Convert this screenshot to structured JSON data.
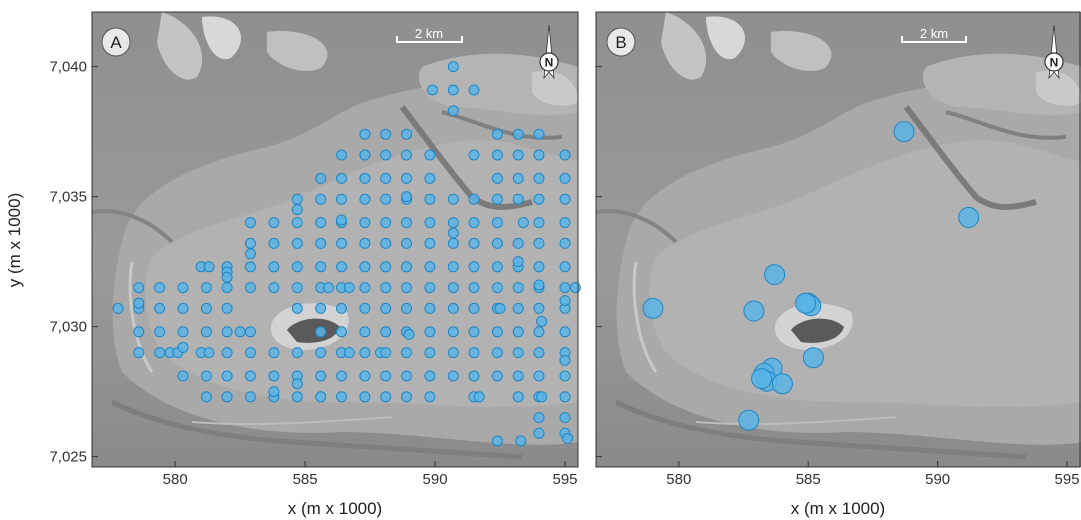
{
  "chart_data": [
    {
      "type": "scatter",
      "panel_label": "A",
      "scale_bar_label": "2 km",
      "north_label": "N",
      "xlabel": "x (m x 1000)",
      "ylabel": "y (m x 1000)",
      "xlim": [
        576.8,
        595.5
      ],
      "ylim": [
        7024.6,
        7042.1
      ],
      "xticks": [
        580,
        585,
        590,
        595
      ],
      "xtick_labels": [
        "580",
        "585",
        "590",
        "595"
      ],
      "yticks": [
        7025,
        7030,
        7035,
        7040
      ],
      "ytick_labels": [
        "7,025",
        "7,030",
        "7,035",
        "7,040"
      ],
      "marker_color": "#5ab4e6",
      "marker_edge_color": "#1f86c4",
      "marker_radius": 5,
      "points": [
        [
          590.7,
          7040.0
        ],
        [
          589.9,
          7039.1
        ],
        [
          590.7,
          7039.1
        ],
        [
          591.5,
          7039.1
        ],
        [
          590.7,
          7038.3
        ],
        [
          587.3,
          7037.4
        ],
        [
          588.1,
          7037.4
        ],
        [
          588.9,
          7037.4
        ],
        [
          592.4,
          7037.4
        ],
        [
          593.2,
          7037.4
        ],
        [
          594.0,
          7037.4
        ],
        [
          586.4,
          7036.6
        ],
        [
          587.3,
          7036.6
        ],
        [
          588.1,
          7036.6
        ],
        [
          588.9,
          7036.6
        ],
        [
          589.8,
          7036.6
        ],
        [
          591.5,
          7036.6
        ],
        [
          592.4,
          7036.6
        ],
        [
          593.2,
          7036.6
        ],
        [
          594.0,
          7036.6
        ],
        [
          595.0,
          7036.6
        ],
        [
          585.6,
          7035.7
        ],
        [
          586.4,
          7035.7
        ],
        [
          587.3,
          7035.7
        ],
        [
          588.1,
          7035.7
        ],
        [
          588.9,
          7035.7
        ],
        [
          589.8,
          7035.7
        ],
        [
          592.4,
          7035.7
        ],
        [
          593.2,
          7035.7
        ],
        [
          594.0,
          7035.7
        ],
        [
          595.0,
          7035.7
        ],
        [
          584.7,
          7034.9
        ],
        [
          585.6,
          7034.9
        ],
        [
          586.4,
          7034.9
        ],
        [
          587.3,
          7034.9
        ],
        [
          588.1,
          7034.9
        ],
        [
          588.9,
          7034.9
        ],
        [
          589.8,
          7034.9
        ],
        [
          590.7,
          7034.9
        ],
        [
          591.5,
          7034.9
        ],
        [
          592.4,
          7034.9
        ],
        [
          593.2,
          7034.9
        ],
        [
          594.0,
          7034.9
        ],
        [
          595.0,
          7034.9
        ],
        [
          584.7,
          7034.5
        ],
        [
          588.9,
          7035.0
        ],
        [
          582.9,
          7034.0
        ],
        [
          583.8,
          7034.0
        ],
        [
          584.7,
          7034.0
        ],
        [
          585.6,
          7034.0
        ],
        [
          586.4,
          7034.0
        ],
        [
          587.3,
          7034.0
        ],
        [
          588.1,
          7034.0
        ],
        [
          588.9,
          7034.0
        ],
        [
          589.8,
          7034.0
        ],
        [
          590.7,
          7034.0
        ],
        [
          591.5,
          7034.0
        ],
        [
          592.4,
          7034.0
        ],
        [
          593.4,
          7034.0
        ],
        [
          594.0,
          7034.0
        ],
        [
          595.0,
          7034.0
        ],
        [
          586.4,
          7034.1
        ],
        [
          582.9,
          7033.2
        ],
        [
          583.8,
          7033.2
        ],
        [
          584.7,
          7033.2
        ],
        [
          585.6,
          7033.2
        ],
        [
          586.4,
          7033.2
        ],
        [
          587.3,
          7033.2
        ],
        [
          588.1,
          7033.2
        ],
        [
          588.9,
          7033.2
        ],
        [
          589.8,
          7033.2
        ],
        [
          590.7,
          7033.2
        ],
        [
          591.5,
          7033.2
        ],
        [
          592.4,
          7033.2
        ],
        [
          593.2,
          7033.2
        ],
        [
          594.0,
          7033.2
        ],
        [
          595.0,
          7033.2
        ],
        [
          590.7,
          7033.6
        ],
        [
          581.0,
          7032.3
        ],
        [
          581.3,
          7032.3
        ],
        [
          582.0,
          7032.3
        ],
        [
          582.9,
          7032.3
        ],
        [
          583.8,
          7032.3
        ],
        [
          584.7,
          7032.3
        ],
        [
          585.6,
          7032.3
        ],
        [
          586.4,
          7032.3
        ],
        [
          587.3,
          7032.3
        ],
        [
          588.1,
          7032.3
        ],
        [
          588.9,
          7032.3
        ],
        [
          589.8,
          7032.3
        ],
        [
          590.7,
          7032.3
        ],
        [
          591.5,
          7032.3
        ],
        [
          592.4,
          7032.3
        ],
        [
          593.2,
          7032.3
        ],
        [
          594.0,
          7032.3
        ],
        [
          595.0,
          7032.3
        ],
        [
          582.9,
          7032.8
        ],
        [
          593.2,
          7032.5
        ],
        [
          582.0,
          7032.1
        ],
        [
          582.0,
          7031.9
        ],
        [
          578.6,
          7031.5
        ],
        [
          579.4,
          7031.5
        ],
        [
          580.3,
          7031.5
        ],
        [
          581.2,
          7031.5
        ],
        [
          582.0,
          7031.5
        ],
        [
          582.9,
          7031.5
        ],
        [
          583.8,
          7031.5
        ],
        [
          584.7,
          7031.5
        ],
        [
          585.6,
          7031.5
        ],
        [
          586.4,
          7031.5
        ],
        [
          587.3,
          7031.5
        ],
        [
          588.1,
          7031.5
        ],
        [
          588.9,
          7031.5
        ],
        [
          589.8,
          7031.5
        ],
        [
          590.7,
          7031.5
        ],
        [
          591.5,
          7031.5
        ],
        [
          592.4,
          7031.5
        ],
        [
          593.2,
          7031.5
        ],
        [
          594.0,
          7031.5
        ],
        [
          595.0,
          7031.5
        ],
        [
          595.4,
          7031.5
        ],
        [
          585.9,
          7031.5
        ],
        [
          586.7,
          7031.5
        ],
        [
          594.0,
          7031.6
        ],
        [
          577.8,
          7030.7
        ],
        [
          578.6,
          7030.7
        ],
        [
          579.4,
          7030.7
        ],
        [
          580.3,
          7030.7
        ],
        [
          581.2,
          7030.7
        ],
        [
          582.0,
          7030.7
        ],
        [
          584.7,
          7030.7
        ],
        [
          585.6,
          7030.7
        ],
        [
          586.4,
          7030.7
        ],
        [
          587.3,
          7030.7
        ],
        [
          588.1,
          7030.7
        ],
        [
          588.9,
          7030.7
        ],
        [
          589.8,
          7030.7
        ],
        [
          590.7,
          7030.7
        ],
        [
          591.5,
          7030.7
        ],
        [
          592.4,
          7030.7
        ],
        [
          593.2,
          7030.7
        ],
        [
          594.0,
          7030.7
        ],
        [
          595.0,
          7030.7
        ],
        [
          578.6,
          7030.9
        ],
        [
          592.5,
          7030.7
        ],
        [
          595.0,
          7031.0
        ],
        [
          578.6,
          7029.8
        ],
        [
          579.4,
          7029.8
        ],
        [
          580.3,
          7029.8
        ],
        [
          581.2,
          7029.8
        ],
        [
          582.0,
          7029.8
        ],
        [
          582.5,
          7029.8
        ],
        [
          582.9,
          7029.8
        ],
        [
          585.6,
          7029.8
        ],
        [
          586.4,
          7029.8
        ],
        [
          587.3,
          7029.8
        ],
        [
          588.1,
          7029.8
        ],
        [
          588.9,
          7029.8
        ],
        [
          589.8,
          7029.8
        ],
        [
          590.7,
          7029.8
        ],
        [
          591.5,
          7029.8
        ],
        [
          592.4,
          7029.8
        ],
        [
          593.2,
          7029.8
        ],
        [
          594.0,
          7029.8
        ],
        [
          595.0,
          7029.8
        ],
        [
          589.0,
          7029.7
        ],
        [
          594.1,
          7030.2
        ],
        [
          578.6,
          7029.0
        ],
        [
          579.4,
          7029.0
        ],
        [
          579.8,
          7029.0
        ],
        [
          580.1,
          7029.0
        ],
        [
          581.0,
          7029.0
        ],
        [
          581.3,
          7029.0
        ],
        [
          582.0,
          7029.0
        ],
        [
          582.9,
          7029.0
        ],
        [
          583.8,
          7029.0
        ],
        [
          584.7,
          7029.0
        ],
        [
          585.6,
          7029.0
        ],
        [
          586.4,
          7029.0
        ],
        [
          586.7,
          7029.0
        ],
        [
          587.3,
          7029.0
        ],
        [
          587.9,
          7029.0
        ],
        [
          588.1,
          7029.0
        ],
        [
          588.9,
          7029.0
        ],
        [
          589.8,
          7029.0
        ],
        [
          590.7,
          7029.0
        ],
        [
          591.5,
          7029.0
        ],
        [
          592.4,
          7029.0
        ],
        [
          593.2,
          7029.0
        ],
        [
          594.0,
          7029.0
        ],
        [
          595.0,
          7029.0
        ],
        [
          580.3,
          7029.2
        ],
        [
          595.0,
          7028.7
        ],
        [
          580.3,
          7028.1
        ],
        [
          581.2,
          7028.1
        ],
        [
          582.0,
          7028.1
        ],
        [
          582.9,
          7028.1
        ],
        [
          583.8,
          7028.1
        ],
        [
          584.7,
          7028.1
        ],
        [
          585.6,
          7028.1
        ],
        [
          586.4,
          7028.1
        ],
        [
          587.3,
          7028.1
        ],
        [
          588.1,
          7028.1
        ],
        [
          588.9,
          7028.1
        ],
        [
          589.8,
          7028.1
        ],
        [
          590.7,
          7028.1
        ],
        [
          591.5,
          7028.1
        ],
        [
          592.4,
          7028.1
        ],
        [
          593.2,
          7028.1
        ],
        [
          594.0,
          7028.1
        ],
        [
          595.0,
          7028.1
        ],
        [
          584.7,
          7027.8
        ],
        [
          581.2,
          7027.3
        ],
        [
          582.0,
          7027.3
        ],
        [
          582.9,
          7027.3
        ],
        [
          583.8,
          7027.3
        ],
        [
          584.7,
          7027.3
        ],
        [
          585.6,
          7027.3
        ],
        [
          586.4,
          7027.3
        ],
        [
          587.3,
          7027.3
        ],
        [
          588.1,
          7027.3
        ],
        [
          588.9,
          7027.3
        ],
        [
          589.8,
          7027.3
        ],
        [
          591.5,
          7027.3
        ],
        [
          591.7,
          7027.3
        ],
        [
          593.2,
          7027.3
        ],
        [
          594.0,
          7027.3
        ],
        [
          594.1,
          7027.3
        ],
        [
          595.0,
          7027.3
        ],
        [
          583.8,
          7027.5
        ],
        [
          594.0,
          7026.5
        ],
        [
          595.0,
          7026.5
        ],
        [
          594.0,
          7025.9
        ],
        [
          595.0,
          7025.9
        ],
        [
          595.1,
          7025.7
        ],
        [
          592.4,
          7025.6
        ],
        [
          593.3,
          7025.6
        ]
      ]
    },
    {
      "type": "scatter",
      "panel_label": "B",
      "scale_bar_label": "2 km",
      "north_label": "N",
      "xlabel": "x (m x 1000)",
      "ylabel": "",
      "xlim": [
        576.8,
        595.5
      ],
      "ylim": [
        7024.6,
        7042.1
      ],
      "xticks": [
        580,
        585,
        590,
        595
      ],
      "xtick_labels": [
        "580",
        "585",
        "590",
        "595"
      ],
      "yticks": [
        7025,
        7030,
        7035,
        7040
      ],
      "ytick_labels": [],
      "marker_color": "#5ab4e6",
      "marker_edge_color": "#1f86c4",
      "marker_radius": 10,
      "points": [
        [
          588.7,
          7037.5
        ],
        [
          591.2,
          7034.2
        ],
        [
          583.7,
          7032.0
        ],
        [
          579.0,
          7030.7
        ],
        [
          582.9,
          7030.6
        ],
        [
          585.0,
          7030.9
        ],
        [
          585.1,
          7030.8
        ],
        [
          584.9,
          7030.9
        ],
        [
          585.2,
          7028.8
        ],
        [
          583.6,
          7028.4
        ],
        [
          583.3,
          7028.2
        ],
        [
          583.4,
          7027.9
        ],
        [
          583.2,
          7028.0
        ],
        [
          584.0,
          7027.8
        ],
        [
          582.7,
          7026.4
        ]
      ]
    }
  ]
}
